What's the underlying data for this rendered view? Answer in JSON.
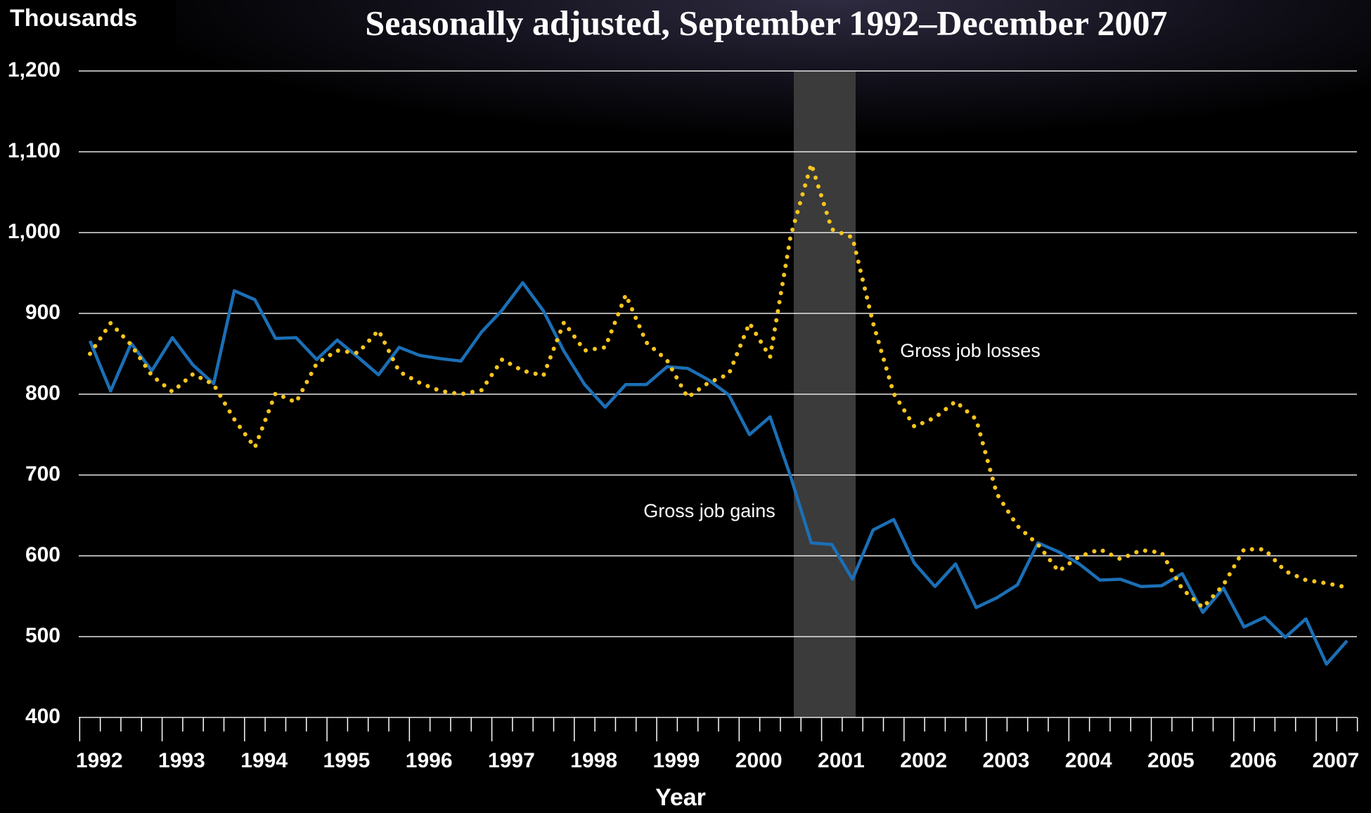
{
  "chart_data": {
    "type": "line",
    "title": "Seasonally adjusted, September 1992–December 2007",
    "y_label": "Thousands",
    "x_label": "Year",
    "categories": [
      "1992",
      null,
      null,
      null,
      "1993",
      null,
      null,
      null,
      "1994",
      null,
      null,
      null,
      "1995",
      null,
      null,
      null,
      "1996",
      null,
      null,
      null,
      "1997",
      null,
      null,
      null,
      "1998",
      null,
      null,
      null,
      "1999",
      null,
      null,
      null,
      "2000",
      null,
      null,
      null,
      "2001",
      null,
      null,
      null,
      "2002",
      null,
      null,
      null,
      "2003",
      null,
      null,
      null,
      "2004",
      null,
      null,
      null,
      "2005",
      null,
      null,
      null,
      "2006",
      null,
      null,
      null,
      "2007",
      null
    ],
    "series": [
      {
        "name": "Gross job gains",
        "color": "#1b6fb6",
        "style": "solid",
        "values": [
          866,
          804,
          863,
          829,
          870,
          836,
          813,
          928,
          917,
          869,
          870,
          843,
          867,
          846,
          824,
          858,
          848,
          844,
          841,
          877,
          904,
          938,
          903,
          853,
          812,
          784,
          812,
          812,
          834,
          832,
          818,
          799,
          750,
          772,
          698,
          616,
          614,
          571,
          632,
          645,
          591,
          562,
          590,
          536,
          548,
          564,
          616,
          605,
          590,
          570,
          571,
          562,
          563,
          578,
          530,
          560,
          512,
          524,
          499,
          522,
          466,
          495
        ]
      },
      {
        "name": "Gross job losses",
        "color": "#f7c51e",
        "style": "dotted",
        "values": [
          850,
          888,
          861,
          823,
          803,
          825,
          812,
          769,
          734,
          801,
          790,
          838,
          854,
          851,
          879,
          828,
          814,
          804,
          800,
          805,
          843,
          829,
          823,
          889,
          854,
          858,
          923,
          864,
          842,
          796,
          814,
          825,
          888,
          846,
          996,
          1085,
          1004,
          994,
          888,
          801,
          760,
          771,
          791,
          769,
          677,
          637,
          614,
          581,
          599,
          608,
          596,
          607,
          604,
          559,
          536,
          564,
          608,
          608,
          581,
          570,
          566,
          561
        ]
      }
    ],
    "ylim": [
      400,
      1200
    ],
    "yticks": [
      400,
      500,
      600,
      700,
      800,
      900,
      {
        "value": 1000,
        "label": "1,000"
      },
      {
        "value": 1100,
        "label": "1,100"
      },
      {
        "value": 1200,
        "label": "1,200"
      }
    ],
    "grid": true
  }
}
